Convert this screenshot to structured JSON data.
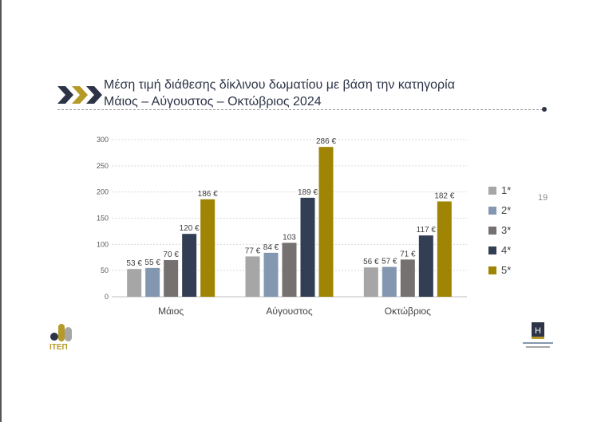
{
  "title": {
    "line1": "Μέση τιμή διάθεσης δίκλινου δωματίου με βάση την κατηγορία",
    "line2": "Μάιος – Αύγουστος – Οκτώβριος 2024"
  },
  "page_number": "19",
  "logo_left_text": "ΙΤΕΠ",
  "colors": {
    "chevron_dark": "#2d3447",
    "chevron_gold": "#b59a2a"
  },
  "chart_data": {
    "type": "bar",
    "categories": [
      "Μάιος",
      "Αύγουστος",
      "Οκτώβριος"
    ],
    "series": [
      {
        "name": "1*",
        "color": "#a6a6a6",
        "values": [
          53,
          77,
          56
        ],
        "labels": [
          "53 €",
          "77 €",
          "56 €"
        ]
      },
      {
        "name": "2*",
        "color": "#8497b0",
        "values": [
          55,
          84,
          57
        ],
        "labels": [
          "55 €",
          "84 €",
          "57 €"
        ]
      },
      {
        "name": "3*",
        "color": "#767171",
        "values": [
          70,
          103,
          71
        ],
        "labels": [
          "70 €",
          "103",
          "71 €"
        ]
      },
      {
        "name": "4*",
        "color": "#323e53",
        "values": [
          120,
          189,
          117
        ],
        "labels": [
          "120 €",
          "189 €",
          "117 €"
        ]
      },
      {
        "name": "5*",
        "color": "#a08403",
        "values": [
          186,
          286,
          182
        ],
        "labels": [
          "186 €",
          "286 €",
          "182 €"
        ]
      }
    ],
    "ylim": [
      0,
      300
    ],
    "yticks": [
      0,
      50,
      100,
      150,
      200,
      250,
      300
    ],
    "grid": true,
    "legend": "right"
  }
}
